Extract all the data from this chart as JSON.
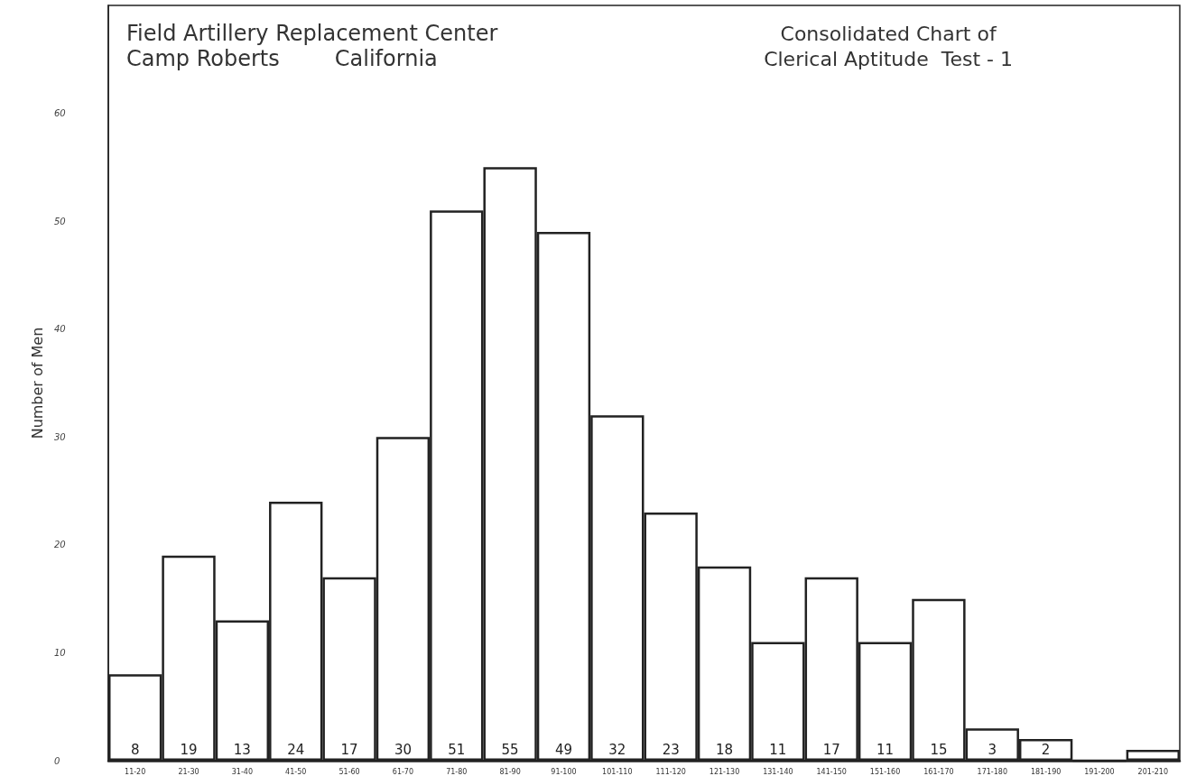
{
  "chart_data": {
    "type": "bar",
    "title": "Field Artillery Replacement Center\nCamp Roberts        California",
    "subtitle": "Consolidated Chart of\nClerical Aptitude  Test - 1",
    "ylabel": "Number of Men",
    "categories": [
      "11-20",
      "21-30",
      "31-40",
      "41-50",
      "51-60",
      "61-70",
      "71-80",
      "81-90",
      "91-100",
      "101-110",
      "111-120",
      "121-130",
      "131-140",
      "141-150",
      "151-160",
      "161-170",
      "171-180",
      "181-190",
      "191-200",
      "201-210"
    ],
    "values": [
      8,
      19,
      13,
      24,
      17,
      30,
      51,
      55,
      49,
      32,
      23,
      18,
      11,
      17,
      11,
      15,
      3,
      2,
      0,
      1
    ],
    "value_labels": [
      "8",
      "19",
      "13",
      "24",
      "17",
      "30",
      "51",
      "55",
      "49",
      "32",
      "23",
      "18",
      "11",
      "17",
      "11",
      "15",
      "3",
      "2",
      null,
      null
    ],
    "color": "#ffffff",
    "ylim": [
      0,
      70
    ],
    "yticks": [
      0,
      10,
      20,
      30,
      40,
      50,
      60
    ],
    "grid": false
  }
}
